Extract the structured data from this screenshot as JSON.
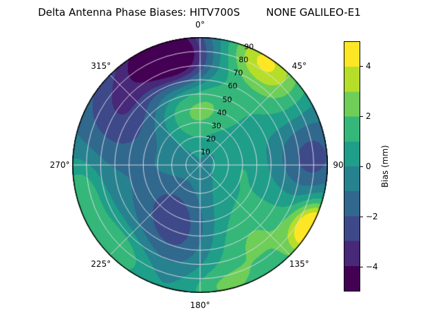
{
  "chart_data": {
    "type": "polar_contour",
    "title": "Delta Antenna Phase Biases: HITV700S        NONE GALILEO-E1",
    "colormap": "viridis",
    "value_unit": "mm",
    "levels": [
      -5,
      -4,
      -3,
      -2,
      -1,
      0,
      1,
      2,
      3,
      4,
      5
    ],
    "colors": [
      "#440154",
      "#482878",
      "#3e4989",
      "#31688e",
      "#26828e",
      "#1f9e89",
      "#35b779",
      "#6ece58",
      "#b5de2b",
      "#fde725"
    ],
    "colorbar": {
      "label": "Bias (mm)",
      "vmin": -5,
      "vmax": 5,
      "ticks": [
        {
          "v": 4,
          "label": "4"
        },
        {
          "v": 2,
          "label": "2"
        },
        {
          "v": 0,
          "label": "0"
        },
        {
          "v": -2,
          "label": "−2"
        },
        {
          "v": -4,
          "label": "−4"
        }
      ]
    },
    "azimuth_ticks": [
      {
        "deg": 0,
        "label": "0°"
      },
      {
        "deg": 45,
        "label": "45°"
      },
      {
        "deg": 90,
        "label": "90°"
      },
      {
        "deg": 135,
        "label": "135°"
      },
      {
        "deg": 180,
        "label": "180°"
      },
      {
        "deg": 225,
        "label": "225°"
      },
      {
        "deg": 270,
        "label": "270°"
      },
      {
        "deg": 315,
        "label": "315°"
      }
    ],
    "radial_ticks": [
      {
        "value": 90,
        "label": "90"
      },
      {
        "value": 80,
        "label": "80"
      },
      {
        "value": 70,
        "label": "70"
      },
      {
        "value": 60,
        "label": "60"
      },
      {
        "value": 50,
        "label": "50"
      },
      {
        "value": 40,
        "label": "40"
      },
      {
        "value": 30,
        "label": "30"
      },
      {
        "value": 20,
        "label": "20"
      },
      {
        "value": 10,
        "label": "10"
      }
    ],
    "radial_label_angle_deg": 22.5,
    "grid": {
      "circle_step": 10,
      "spoke_step_deg": 45,
      "color": "rgba(232,226,236,0.9)"
    },
    "field": {
      "description": "bias (mm) modeled as gaussian blobs over azimuth(deg, cw from N) and radius(0-90)",
      "base": -0.3,
      "blobs": [
        {
          "az": 342,
          "r": 84,
          "amp": -4.8,
          "saz": 13,
          "sr": 15
        },
        {
          "az": 315,
          "r": 72,
          "amp": -2.6,
          "saz": 22,
          "sr": 20
        },
        {
          "az": 295,
          "r": 50,
          "amp": -1.2,
          "saz": 22,
          "sr": 18
        },
        {
          "az": 353,
          "r": 70,
          "amp": -1.8,
          "saz": 11,
          "sr": 12
        },
        {
          "az": 31,
          "r": 87,
          "amp": 4.0,
          "saz": 13,
          "sr": 14
        },
        {
          "az": 52,
          "r": 74,
          "amp": 1.6,
          "saz": 16,
          "sr": 16
        },
        {
          "az": 85,
          "r": 78,
          "amp": -2.4,
          "saz": 17,
          "sr": 16
        },
        {
          "az": 119,
          "r": 90,
          "amp": 5.6,
          "saz": 9,
          "sr": 10
        },
        {
          "az": 146,
          "r": 66,
          "amp": 2.5,
          "saz": 26,
          "sr": 22
        },
        {
          "az": 170,
          "r": 88,
          "amp": 1.6,
          "saz": 12,
          "sr": 10
        },
        {
          "az": 196,
          "r": 55,
          "amp": -1.9,
          "saz": 22,
          "sr": 18
        },
        {
          "az": 226,
          "r": 82,
          "amp": 2.4,
          "saz": 15,
          "sr": 12
        },
        {
          "az": 257,
          "r": 85,
          "amp": 2.0,
          "saz": 11,
          "sr": 10
        },
        {
          "az": 356,
          "r": 40,
          "amp": 2.7,
          "saz": 32,
          "sr": 17
        },
        {
          "az": 222,
          "r": 34,
          "amp": -1.5,
          "saz": 28,
          "sr": 15
        },
        {
          "az": 95,
          "r": 30,
          "amp": 1.2,
          "saz": 30,
          "sr": 13
        }
      ]
    }
  }
}
